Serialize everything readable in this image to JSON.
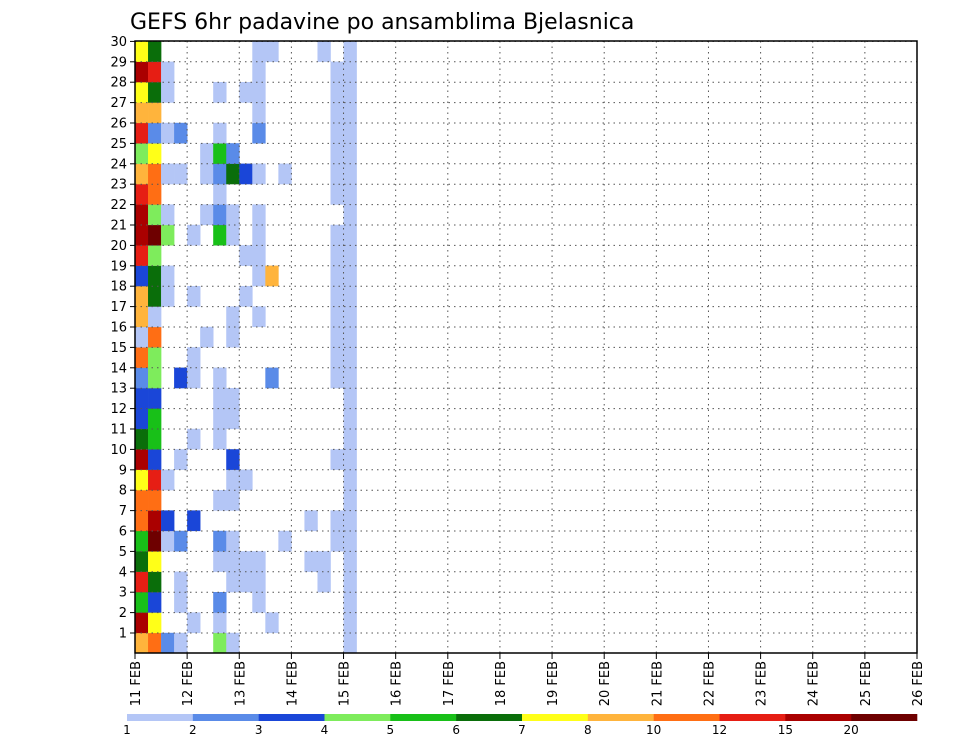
{
  "chart_data": {
    "type": "heatmap",
    "title": "GEFS 6hr padavine po ansamblima Bjelasnica",
    "x_tick_labels": [
      "11 FEB",
      "12 FEB",
      "13 FEB",
      "14 FEB",
      "15 FEB",
      "16 FEB",
      "17 FEB",
      "18 FEB",
      "19 FEB",
      "20 FEB",
      "21 FEB",
      "22 FEB",
      "23 FEB",
      "24 FEB",
      "25 FEB",
      "26 FEB"
    ],
    "y_tick_labels": [
      "1",
      "2",
      "3",
      "4",
      "5",
      "6",
      "7",
      "8",
      "9",
      "10",
      "11",
      "12",
      "13",
      "14",
      "15",
      "16",
      "17",
      "18",
      "19",
      "20",
      "21",
      "22",
      "23",
      "24",
      "25",
      "26",
      "27",
      "28",
      "29",
      "30"
    ],
    "grid": "dotted",
    "colorbar": {
      "labels": [
        "1",
        "2",
        "3",
        "4",
        "5",
        "6",
        "7",
        "8",
        "10",
        "12",
        "15",
        "20"
      ],
      "colors": [
        "#b4c6f6",
        "#5a8be8",
        "#1a46d8",
        "#7eec5c",
        "#18c018",
        "#0a6e0a",
        "#ffff18",
        "#ffb43c",
        "#ff6e14",
        "#e61e14",
        "#aa0000",
        "#6e0000"
      ]
    },
    "time_steps": 61,
    "members": 30,
    "cells": [
      [
        0,
        1,
        8
      ],
      [
        0,
        2,
        11
      ],
      [
        0,
        3,
        5
      ],
      [
        0,
        4,
        10
      ],
      [
        0,
        5,
        6
      ],
      [
        0,
        6,
        5
      ],
      [
        0,
        7,
        9
      ],
      [
        0,
        8,
        9
      ],
      [
        0,
        9,
        7
      ],
      [
        0,
        10,
        11
      ],
      [
        0,
        11,
        6
      ],
      [
        0,
        12,
        3
      ],
      [
        0,
        13,
        3
      ],
      [
        0,
        14,
        2
      ],
      [
        0,
        15,
        9
      ],
      [
        0,
        16,
        1
      ],
      [
        0,
        17,
        8
      ],
      [
        0,
        18,
        8
      ],
      [
        0,
        19,
        3
      ],
      [
        0,
        20,
        10
      ],
      [
        0,
        21,
        11
      ],
      [
        0,
        22,
        11
      ],
      [
        0,
        23,
        10
      ],
      [
        0,
        24,
        8
      ],
      [
        0,
        25,
        4
      ],
      [
        0,
        26,
        10
      ],
      [
        0,
        27,
        8
      ],
      [
        0,
        28,
        7
      ],
      [
        0,
        29,
        11
      ],
      [
        0,
        30,
        7
      ],
      [
        1,
        1,
        9
      ],
      [
        1,
        2,
        7
      ],
      [
        1,
        3,
        3
      ],
      [
        1,
        4,
        6
      ],
      [
        1,
        5,
        7
      ],
      [
        1,
        6,
        12
      ],
      [
        1,
        7,
        11
      ],
      [
        1,
        8,
        9
      ],
      [
        1,
        9,
        10
      ],
      [
        1,
        10,
        3
      ],
      [
        1,
        11,
        5
      ],
      [
        1,
        12,
        5
      ],
      [
        1,
        13,
        3
      ],
      [
        1,
        14,
        4
      ],
      [
        1,
        15,
        4
      ],
      [
        1,
        16,
        9
      ],
      [
        1,
        17,
        1
      ],
      [
        1,
        18,
        6
      ],
      [
        1,
        19,
        6
      ],
      [
        1,
        20,
        4
      ],
      [
        1,
        21,
        12
      ],
      [
        1,
        22,
        4
      ],
      [
        1,
        23,
        9
      ],
      [
        1,
        24,
        9
      ],
      [
        1,
        25,
        7
      ],
      [
        1,
        26,
        2
      ],
      [
        1,
        27,
        8
      ],
      [
        1,
        28,
        6
      ],
      [
        1,
        29,
        10
      ],
      [
        1,
        30,
        6
      ],
      [
        2,
        1,
        2
      ],
      [
        2,
        6,
        1
      ],
      [
        2,
        7,
        3
      ],
      [
        2,
        9,
        1
      ],
      [
        2,
        18,
        1
      ],
      [
        2,
        19,
        1
      ],
      [
        2,
        21,
        4
      ],
      [
        2,
        22,
        1
      ],
      [
        2,
        24,
        1
      ],
      [
        2,
        26,
        1
      ],
      [
        2,
        28,
        1
      ],
      [
        2,
        29,
        1
      ],
      [
        3,
        1,
        1
      ],
      [
        3,
        3,
        1
      ],
      [
        3,
        4,
        1
      ],
      [
        3,
        6,
        2
      ],
      [
        3,
        10,
        1
      ],
      [
        3,
        14,
        3
      ],
      [
        3,
        24,
        1
      ],
      [
        3,
        26,
        2
      ],
      [
        4,
        2,
        1
      ],
      [
        4,
        7,
        3
      ],
      [
        4,
        11,
        1
      ],
      [
        4,
        14,
        1
      ],
      [
        4,
        15,
        1
      ],
      [
        4,
        18,
        1
      ],
      [
        4,
        21,
        1
      ],
      [
        5,
        16,
        1
      ],
      [
        5,
        22,
        1
      ],
      [
        5,
        24,
        1
      ],
      [
        5,
        25,
        1
      ],
      [
        6,
        1,
        4
      ],
      [
        6,
        2,
        1
      ],
      [
        6,
        3,
        2
      ],
      [
        6,
        5,
        1
      ],
      [
        6,
        6,
        2
      ],
      [
        6,
        8,
        1
      ],
      [
        6,
        11,
        1
      ],
      [
        6,
        12,
        1
      ],
      [
        6,
        13,
        1
      ],
      [
        6,
        14,
        1
      ],
      [
        6,
        21,
        5
      ],
      [
        6,
        22,
        2
      ],
      [
        6,
        23,
        1
      ],
      [
        6,
        24,
        2
      ],
      [
        6,
        25,
        5
      ],
      [
        6,
        26,
        1
      ],
      [
        6,
        28,
        1
      ],
      [
        7,
        1,
        1
      ],
      [
        7,
        4,
        1
      ],
      [
        7,
        5,
        1
      ],
      [
        7,
        6,
        1
      ],
      [
        7,
        8,
        1
      ],
      [
        7,
        9,
        1
      ],
      [
        7,
        10,
        3
      ],
      [
        7,
        12,
        1
      ],
      [
        7,
        13,
        1
      ],
      [
        7,
        16,
        1
      ],
      [
        7,
        17,
        1
      ],
      [
        7,
        21,
        1
      ],
      [
        7,
        22,
        1
      ],
      [
        7,
        24,
        6
      ],
      [
        7,
        25,
        2
      ],
      [
        8,
        4,
        1
      ],
      [
        8,
        5,
        1
      ],
      [
        8,
        9,
        1
      ],
      [
        8,
        18,
        1
      ],
      [
        8,
        20,
        1
      ],
      [
        8,
        24,
        3
      ],
      [
        8,
        28,
        1
      ],
      [
        9,
        3,
        1
      ],
      [
        9,
        4,
        1
      ],
      [
        9,
        5,
        1
      ],
      [
        9,
        17,
        1
      ],
      [
        9,
        19,
        1
      ],
      [
        9,
        20,
        1
      ],
      [
        9,
        21,
        1
      ],
      [
        9,
        22,
        1
      ],
      [
        9,
        24,
        1
      ],
      [
        9,
        26,
        2
      ],
      [
        9,
        27,
        1
      ],
      [
        9,
        28,
        1
      ],
      [
        9,
        29,
        1
      ],
      [
        9,
        30,
        1
      ],
      [
        10,
        2,
        1
      ],
      [
        10,
        14,
        2
      ],
      [
        10,
        19,
        8
      ],
      [
        10,
        30,
        1
      ],
      [
        11,
        6,
        1
      ],
      [
        11,
        24,
        1
      ],
      [
        13,
        5,
        1
      ],
      [
        13,
        7,
        1
      ],
      [
        14,
        4,
        1
      ],
      [
        14,
        5,
        1
      ],
      [
        14,
        30,
        1
      ],
      [
        15,
        6,
        1
      ],
      [
        15,
        7,
        1
      ],
      [
        15,
        10,
        1
      ],
      [
        15,
        14,
        1
      ],
      [
        15,
        15,
        1
      ],
      [
        15,
        16,
        1
      ],
      [
        15,
        17,
        1
      ],
      [
        15,
        18,
        1
      ],
      [
        15,
        19,
        1
      ],
      [
        15,
        20,
        1
      ],
      [
        15,
        21,
        1
      ],
      [
        15,
        23,
        1
      ],
      [
        15,
        24,
        1
      ],
      [
        15,
        25,
        1
      ],
      [
        15,
        26,
        1
      ],
      [
        15,
        27,
        1
      ],
      [
        15,
        28,
        1
      ],
      [
        15,
        29,
        1
      ],
      [
        16,
        1,
        1
      ],
      [
        16,
        2,
        1
      ],
      [
        16,
        3,
        1
      ],
      [
        16,
        4,
        1
      ],
      [
        16,
        5,
        1
      ],
      [
        16,
        6,
        1
      ],
      [
        16,
        7,
        1
      ],
      [
        16,
        8,
        1
      ],
      [
        16,
        9,
        1
      ],
      [
        16,
        10,
        1
      ],
      [
        16,
        11,
        1
      ],
      [
        16,
        12,
        1
      ],
      [
        16,
        13,
        1
      ],
      [
        16,
        14,
        1
      ],
      [
        16,
        15,
        1
      ],
      [
        16,
        16,
        1
      ],
      [
        16,
        17,
        1
      ],
      [
        16,
        18,
        1
      ],
      [
        16,
        19,
        1
      ],
      [
        16,
        20,
        1
      ],
      [
        16,
        21,
        1
      ],
      [
        16,
        22,
        1
      ],
      [
        16,
        23,
        1
      ],
      [
        16,
        24,
        1
      ],
      [
        16,
        25,
        1
      ],
      [
        16,
        26,
        1
      ],
      [
        16,
        27,
        1
      ],
      [
        16,
        28,
        1
      ],
      [
        16,
        29,
        1
      ],
      [
        16,
        30,
        1
      ]
    ]
  }
}
